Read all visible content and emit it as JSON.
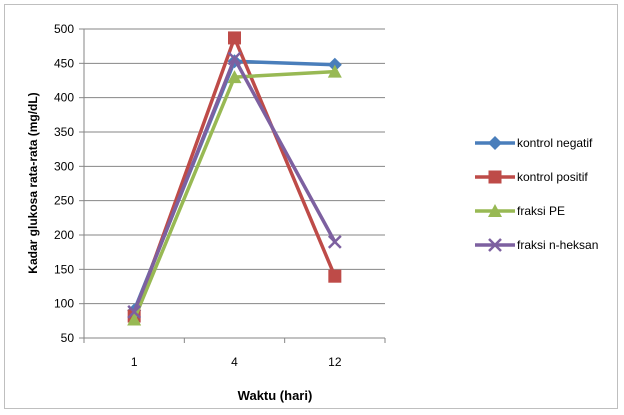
{
  "chart_data": {
    "type": "line",
    "title": "",
    "xlabel": "Waktu (hari)",
    "ylabel": "Kadar glukosa rata-rata  (mg/dL)",
    "categories": [
      "1",
      "4",
      "12"
    ],
    "ylim": [
      50,
      500
    ],
    "yticks": [
      "50",
      "100",
      "150",
      "200",
      "250",
      "300",
      "350",
      "400",
      "450",
      "500"
    ],
    "grid": true,
    "legend_position": "right",
    "series": [
      {
        "name": "kontrol negatif",
        "values": [
          90,
          453,
          448
        ],
        "color": "#4a7ebb",
        "marker": "diamond"
      },
      {
        "name": "kontrol positif",
        "values": [
          82,
          487,
          140
        ],
        "color": "#be4b48",
        "marker": "square"
      },
      {
        "name": "fraksi PE",
        "values": [
          77,
          430,
          438
        ],
        "color": "#98b954",
        "marker": "triangle"
      },
      {
        "name": "fraksi n-heksan",
        "values": [
          88,
          457,
          190
        ],
        "color": "#7d60a0",
        "marker": "x"
      }
    ]
  }
}
